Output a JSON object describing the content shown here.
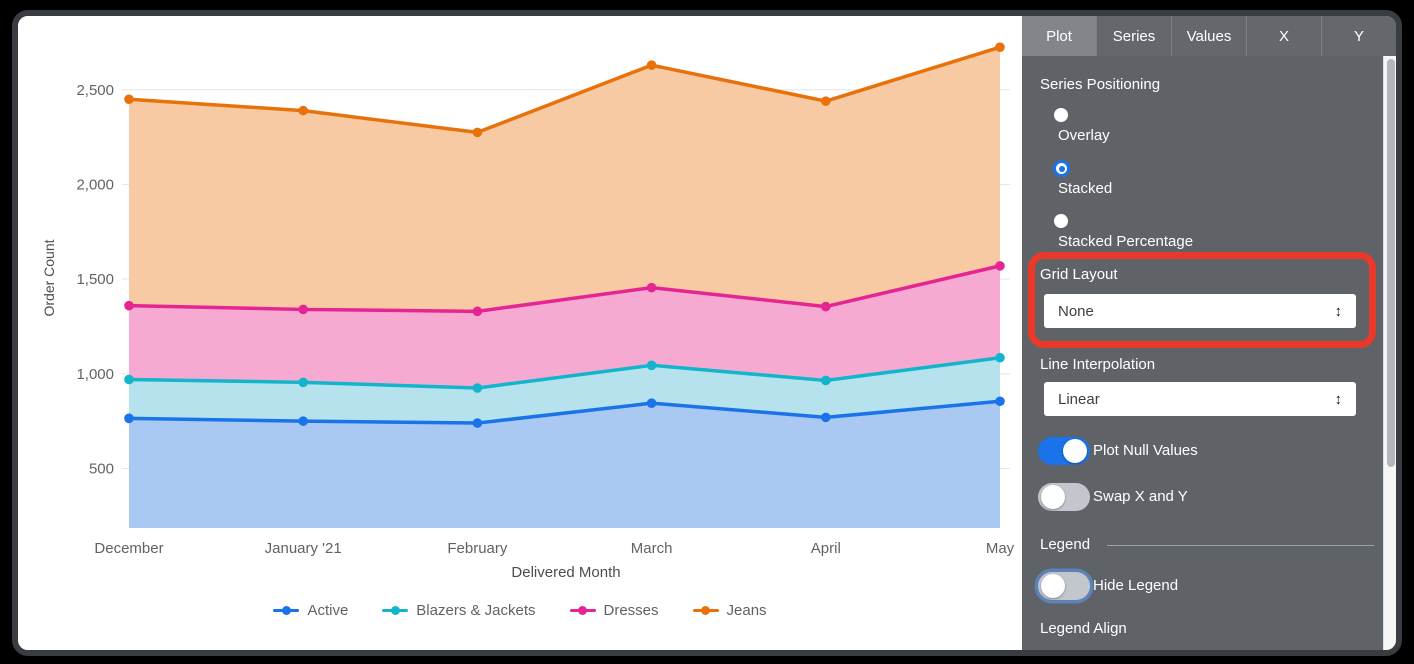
{
  "panel": {
    "tabs": [
      {
        "label": "Plot",
        "selected": true
      },
      {
        "label": "Series",
        "selected": false
      },
      {
        "label": "Values",
        "selected": false
      },
      {
        "label": "X",
        "selected": false
      },
      {
        "label": "Y",
        "selected": false
      }
    ],
    "series_positioning": {
      "label": "Series Positioning",
      "options": [
        {
          "label": "Overlay",
          "selected": false
        },
        {
          "label": "Stacked",
          "selected": true
        },
        {
          "label": "Stacked Percentage",
          "selected": false
        }
      ]
    },
    "grid_layout": {
      "label": "Grid Layout",
      "value": "None"
    },
    "line_interpolation": {
      "label": "Line Interpolation",
      "value": "Linear"
    },
    "plot_null": {
      "label": "Plot Null Values",
      "on": true
    },
    "swap_xy": {
      "label": "Swap X and Y",
      "on": false
    },
    "legend_section": {
      "header": "Legend",
      "hide_legend": {
        "label": "Hide Legend",
        "on": false,
        "focused": true
      },
      "legend_align_label": "Legend Align"
    },
    "icons": {
      "select_stepper": "↕"
    },
    "annotation_color": "#e8392a",
    "accent_color": "#1A73E8"
  },
  "chart_data": {
    "type": "area",
    "stacking": "stacked",
    "title": "",
    "xlabel": "Delivered Month",
    "ylabel": "Order Count",
    "categories": [
      "December",
      "January '21",
      "February",
      "March",
      "April",
      "May"
    ],
    "yticks": [
      500,
      1000,
      1500,
      2000,
      2500
    ],
    "ylim": [
      190,
      2880
    ],
    "grid": "horizontal",
    "legend_position": "bottom",
    "series": [
      {
        "name": "Active",
        "color": "#1A73E8",
        "fill": "#A9C8F2",
        "values": [
          765,
          750,
          740,
          845,
          770,
          855
        ],
        "cumulative": [
          765,
          750,
          740,
          845,
          770,
          855
        ]
      },
      {
        "name": "Blazers & Jackets",
        "color": "#12B5CB",
        "fill": "#B5E2EC",
        "values": [
          205,
          205,
          185,
          200,
          195,
          230
        ],
        "cumulative": [
          970,
          955,
          925,
          1045,
          965,
          1085
        ]
      },
      {
        "name": "Dresses",
        "color": "#E52592",
        "fill": "#F6AAD2",
        "values": [
          390,
          385,
          405,
          410,
          390,
          485
        ],
        "cumulative": [
          1360,
          1340,
          1330,
          1455,
          1355,
          1570
        ]
      },
      {
        "name": "Jeans",
        "color": "#E8710A",
        "fill": "#F7CAA3",
        "values": [
          1090,
          1050,
          945,
          1175,
          1085,
          1155
        ],
        "cumulative": [
          2450,
          2390,
          2275,
          2630,
          2440,
          2725
        ]
      }
    ]
  }
}
